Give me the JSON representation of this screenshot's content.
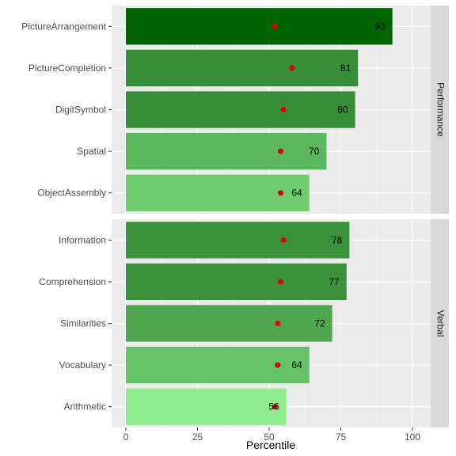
{
  "chart_data": {
    "type": "bar",
    "orientation": "horizontal",
    "xlabel": "Percentile",
    "xlim": [
      0,
      105
    ],
    "xticks": [
      0,
      25,
      50,
      75,
      100
    ],
    "grid": true,
    "marker_color": "#e00000",
    "panels": [
      {
        "strip_label": "Performance",
        "bars": [
          {
            "category": "PictureArrangement",
            "value": 93,
            "marker": 52,
            "color": "#006400"
          },
          {
            "category": "PictureCompletion",
            "value": 81,
            "marker": 58,
            "color": "#388e38"
          },
          {
            "category": "DigitSymbol",
            "value": 80,
            "marker": 55,
            "color": "#388e38"
          },
          {
            "category": "Spatial",
            "value": 70,
            "marker": 54,
            "color": "#5cb85c"
          },
          {
            "category": "ObjectAssembly",
            "value": 64,
            "marker": 54,
            "color": "#6fcd6f"
          }
        ]
      },
      {
        "strip_label": "Verbal",
        "bars": [
          {
            "category": "Information",
            "value": 78,
            "marker": 55,
            "color": "#3c913c"
          },
          {
            "category": "Comprehension",
            "value": 77,
            "marker": 54,
            "color": "#3c913c"
          },
          {
            "category": "Similarities",
            "value": 72,
            "marker": 53,
            "color": "#4fa64f"
          },
          {
            "category": "Vocabulary",
            "value": 64,
            "marker": 53,
            "color": "#66c266"
          },
          {
            "category": "Arithmetic",
            "value": 56,
            "marker": 52,
            "color": "#90ee90"
          }
        ]
      }
    ]
  }
}
